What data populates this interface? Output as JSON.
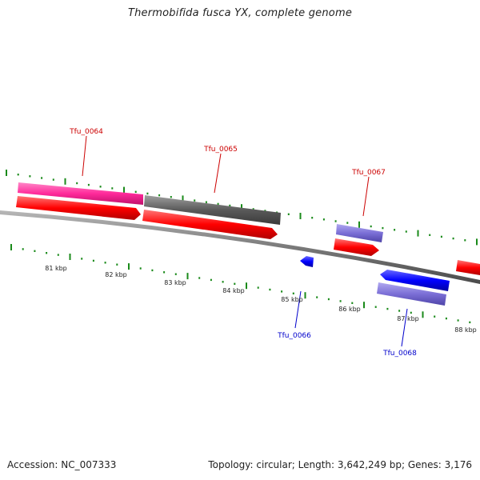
{
  "title": "Thermobifida fusca YX, complete genome",
  "footer": {
    "accession": "Accession: NC_007333",
    "summary": "Topology: circular; Length: 3,642,249 bp; Genes: 3,176"
  },
  "colors": {
    "forward_cds": "#ff0000",
    "reverse_cds": "#0000ff",
    "pink_feature": "#ff2a9a",
    "gray_feature": "#5a5a5a",
    "purple_feature": "#7b6fd6",
    "tick": "#1a8a1a",
    "backbone": "#7a7a7a",
    "label_forward": "#cc0000",
    "label_reverse": "#0000cc"
  },
  "scale_labels": [
    "81 kbp",
    "82 kbp",
    "83 kbp",
    "84 kbp",
    "85 kbp",
    "86 kbp",
    "87 kbp",
    "88 kbp"
  ],
  "gene_labels": [
    {
      "text": "Tfu_0064",
      "strand": "forward"
    },
    {
      "text": "Tfu_0065",
      "strand": "forward"
    },
    {
      "text": "Tfu_0066",
      "strand": "reverse"
    },
    {
      "text": "Tfu_0067",
      "strand": "forward"
    },
    {
      "text": "Tfu_0068",
      "strand": "reverse"
    }
  ]
}
